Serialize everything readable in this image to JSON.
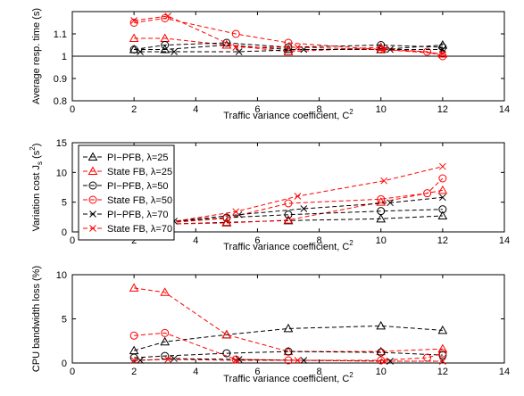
{
  "chart_data": [
    {
      "type": "line",
      "ylabel": "Average resp. time (s)",
      "xlabel": "Traffic variance coefficient, C",
      "xlabel_sup": "2",
      "xlim": [
        0,
        14
      ],
      "ylim": [
        0.8,
        1.2
      ],
      "xticks": [
        0,
        2,
        4,
        6,
        8,
        10,
        12,
        14
      ],
      "yticks": [
        0.8,
        0.9,
        1,
        1.1
      ],
      "reference_line": 1,
      "grid": false,
      "series": [
        {
          "name": "PI−PFB, λ=25",
          "color": "#000000",
          "marker": "triangle",
          "x": [
            2,
            3,
            5,
            7,
            10,
            12
          ],
          "y": [
            1.03,
            1.03,
            1.05,
            1.03,
            1.03,
            1.05
          ]
        },
        {
          "name": "State FB, λ=25",
          "color": "#ff0000",
          "marker": "triangle",
          "x": [
            2,
            3,
            5,
            7,
            10,
            12
          ],
          "y": [
            1.08,
            1.08,
            1.05,
            1.02,
            1.04,
            1.01
          ]
        },
        {
          "name": "PI−PFB, λ=50",
          "color": "#000000",
          "marker": "circle",
          "x": [
            2,
            3,
            5,
            7,
            10,
            12
          ],
          "y": [
            1.03,
            1.05,
            1.06,
            1.04,
            1.05,
            1.04
          ]
        },
        {
          "name": "State FB, λ=50",
          "color": "#ff0000",
          "marker": "circle",
          "x": [
            2,
            3,
            5.3,
            7,
            10,
            11.5,
            12
          ],
          "y": [
            1.15,
            1.17,
            1.1,
            1.06,
            1.03,
            1.02,
            1.0
          ]
        },
        {
          "name": "PI−PFB, λ=70",
          "color": "#000000",
          "marker": "x",
          "x": [
            2.2,
            3.3,
            5.4,
            7.5,
            10.3,
            12
          ],
          "y": [
            1.02,
            1.02,
            1.02,
            1.03,
            1.03,
            1.03
          ]
        },
        {
          "name": "State FB, λ=70",
          "color": "#ff0000",
          "marker": "x",
          "x": [
            2,
            3.1,
            5.3,
            7.3,
            10.1,
            12
          ],
          "y": [
            1.16,
            1.18,
            1.04,
            1.04,
            1.03,
            1.01
          ]
        }
      ]
    },
    {
      "type": "line",
      "ylabel": "Variation cost J",
      "ylabel_sub": "s",
      "ylabel_tail": " (s",
      "ylabel_sup": "2",
      "ylabel_end": ")",
      "xlabel": "Traffic variance coefficient, C",
      "xlabel_sup": "2",
      "xlim": [
        0,
        14
      ],
      "ylim": [
        0,
        15
      ],
      "xticks": [
        0,
        2,
        4,
        6,
        8,
        10,
        12,
        14
      ],
      "yticks": [
        0,
        5,
        10,
        15
      ],
      "grid": false,
      "legend": "top-left",
      "series": [
        {
          "name": "PI−PFB, λ=25",
          "color": "#000000",
          "marker": "triangle",
          "x": [
            2,
            3,
            5,
            7,
            10,
            12
          ],
          "y": [
            1.0,
            1.3,
            1.6,
            1.9,
            2.2,
            2.7
          ]
        },
        {
          "name": "State FB, λ=25",
          "color": "#ff0000",
          "marker": "triangle",
          "x": [
            2,
            3,
            5,
            7,
            10,
            12
          ],
          "y": [
            1.0,
            1.3,
            1.5,
            2.0,
            5.0,
            7.0
          ]
        },
        {
          "name": "PI−PFB, λ=50",
          "color": "#000000",
          "marker": "circle",
          "x": [
            2,
            3,
            5,
            7,
            10,
            12
          ],
          "y": [
            1.2,
            1.6,
            2.4,
            2.9,
            3.5,
            3.8
          ]
        },
        {
          "name": "State FB, λ=50",
          "color": "#ff0000",
          "marker": "circle",
          "x": [
            2,
            3,
            5,
            7,
            10,
            11.5,
            12
          ],
          "y": [
            1.0,
            1.5,
            2.3,
            4.8,
            5.5,
            6.5,
            9.0
          ]
        },
        {
          "name": "PI−PFB, λ=70",
          "color": "#000000",
          "marker": "x",
          "x": [
            2.2,
            3.3,
            5.4,
            7.5,
            10.3,
            12
          ],
          "y": [
            1.4,
            1.8,
            2.9,
            3.9,
            4.9,
            5.8
          ]
        },
        {
          "name": "State FB, λ=70",
          "color": "#ff0000",
          "marker": "x",
          "x": [
            2,
            3.1,
            5.3,
            7.3,
            10.1,
            12
          ],
          "y": [
            1.2,
            1.6,
            3.4,
            6.0,
            8.6,
            11.0
          ]
        }
      ]
    },
    {
      "type": "line",
      "ylabel": "CPU bandwidth loss (%)",
      "xlabel": "Traffic variance coefficient, C",
      "xlabel_sup": "2",
      "xlim": [
        0,
        14
      ],
      "ylim": [
        0,
        10
      ],
      "xticks": [
        0,
        2,
        4,
        6,
        8,
        10,
        12,
        14
      ],
      "yticks": [
        0,
        5,
        10
      ],
      "grid": false,
      "series": [
        {
          "name": "PI−PFB, λ=25",
          "color": "#000000",
          "marker": "triangle",
          "x": [
            2,
            3,
            5,
            7,
            10,
            12
          ],
          "y": [
            1.4,
            2.4,
            3.2,
            3.9,
            4.2,
            3.7
          ]
        },
        {
          "name": "State FB, λ=25",
          "color": "#ff0000",
          "marker": "triangle",
          "x": [
            2,
            3,
            5,
            7,
            10,
            12
          ],
          "y": [
            8.5,
            8.0,
            3.2,
            1.3,
            1.3,
            1.6
          ]
        },
        {
          "name": "PI−PFB, λ=50",
          "color": "#000000",
          "marker": "circle",
          "x": [
            2,
            3,
            5,
            7,
            10,
            12
          ],
          "y": [
            0.6,
            0.8,
            1.1,
            1.3,
            1.2,
            0.9
          ]
        },
        {
          "name": "State FB, λ=50",
          "color": "#ff0000",
          "marker": "circle",
          "x": [
            2,
            3,
            5.3,
            7,
            10,
            11.5,
            12
          ],
          "y": [
            3.1,
            3.4,
            0.4,
            0.3,
            0.3,
            0.6,
            1.1
          ]
        },
        {
          "name": "PI−PFB, λ=70",
          "color": "#000000",
          "marker": "x",
          "x": [
            2.2,
            3.3,
            5.4,
            7.5,
            10.3,
            12
          ],
          "y": [
            0.3,
            0.5,
            0.4,
            0.3,
            0.2,
            0.2
          ]
        },
        {
          "name": "State FB, λ=70",
          "color": "#ff0000",
          "marker": "x",
          "x": [
            2,
            3.1,
            5.3,
            7.3,
            10.1,
            12
          ],
          "y": [
            0.3,
            0.4,
            0.3,
            0.3,
            0.2,
            0.2
          ]
        }
      ]
    }
  ]
}
